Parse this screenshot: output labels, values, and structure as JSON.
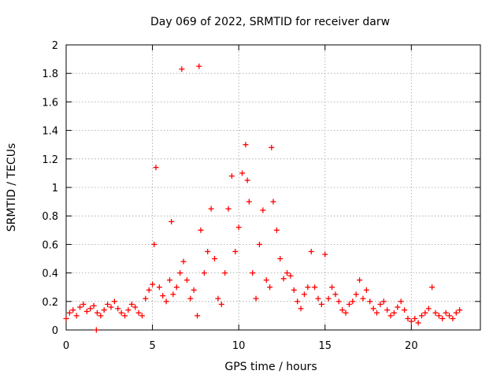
{
  "chart_data": {
    "type": "scatter",
    "title": "Day 069 of 2022, SRMTID for receiver darw",
    "xlabel": "GPS time / hours",
    "ylabel": "SRMTID / TECUs",
    "xlim": [
      0,
      24
    ],
    "ylim": [
      0,
      2
    ],
    "xticks": [
      0,
      5,
      10,
      15,
      20
    ],
    "xtick_labels": [
      "0",
      "5",
      "10",
      "15",
      "20"
    ],
    "yticks": [
      0,
      0.2,
      0.4,
      0.6,
      0.8,
      1,
      1.2,
      1.4,
      1.6,
      1.8,
      2
    ],
    "ytick_labels": [
      "0",
      "0.2",
      "0.4",
      "0.6",
      "0.8",
      "1",
      "1.2",
      "1.4",
      "1.6",
      "1.8",
      "2"
    ],
    "grid": true,
    "marker": "plus",
    "color": "#ff0000",
    "series": [
      {
        "name": "SRMTID",
        "x": [
          0.0,
          0.2,
          0.4,
          0.6,
          0.8,
          1.0,
          1.2,
          1.4,
          1.6,
          1.8,
          2.0,
          2.2,
          2.4,
          2.6,
          2.8,
          3.0,
          3.2,
          3.4,
          3.6,
          3.8,
          4.0,
          4.2,
          4.4,
          4.6,
          4.8,
          5.0,
          5.1,
          5.2,
          5.4,
          5.6,
          5.8,
          6.0,
          6.1,
          6.2,
          6.4,
          6.6,
          6.7,
          6.8,
          7.0,
          7.2,
          7.4,
          7.6,
          7.7,
          7.8,
          8.0,
          8.2,
          8.4,
          8.6,
          8.8,
          9.0,
          9.2,
          9.4,
          9.6,
          9.8,
          10.0,
          10.2,
          10.4,
          10.5,
          10.6,
          10.8,
          11.0,
          11.2,
          11.4,
          11.6,
          11.8,
          11.9,
          12.0,
          12.2,
          12.4,
          12.6,
          12.8,
          13.0,
          13.2,
          13.4,
          13.6,
          13.8,
          14.0,
          14.2,
          14.4,
          14.6,
          14.8,
          15.0,
          15.2,
          15.4,
          15.6,
          15.8,
          16.0,
          16.2,
          16.4,
          16.6,
          16.8,
          17.0,
          17.2,
          17.4,
          17.6,
          17.8,
          18.0,
          18.2,
          18.4,
          18.6,
          18.8,
          19.0,
          19.2,
          19.4,
          19.6,
          19.8,
          20.0,
          20.2,
          20.4,
          20.6,
          20.8,
          21.0,
          21.2,
          21.4,
          21.6,
          21.8,
          22.0,
          22.2,
          22.4,
          22.6,
          22.8,
          1.75
        ],
        "y": [
          0.08,
          0.12,
          0.14,
          0.1,
          0.16,
          0.18,
          0.13,
          0.15,
          0.17,
          0.12,
          0.1,
          0.14,
          0.18,
          0.16,
          0.2,
          0.15,
          0.12,
          0.1,
          0.14,
          0.18,
          0.16,
          0.12,
          0.1,
          0.22,
          0.28,
          0.32,
          0.6,
          1.14,
          0.3,
          0.24,
          0.2,
          0.35,
          0.76,
          0.25,
          0.3,
          0.4,
          1.83,
          0.48,
          0.35,
          0.22,
          0.28,
          0.1,
          1.85,
          0.7,
          0.4,
          0.55,
          0.85,
          0.5,
          0.22,
          0.18,
          0.4,
          0.85,
          1.08,
          0.55,
          0.72,
          1.1,
          1.3,
          1.05,
          0.9,
          0.4,
          0.22,
          0.6,
          0.84,
          0.35,
          0.3,
          1.28,
          0.9,
          0.7,
          0.5,
          0.36,
          0.4,
          0.38,
          0.28,
          0.2,
          0.15,
          0.25,
          0.3,
          0.55,
          0.3,
          0.22,
          0.18,
          0.53,
          0.22,
          0.3,
          0.25,
          0.2,
          0.14,
          0.12,
          0.18,
          0.2,
          0.25,
          0.35,
          0.22,
          0.28,
          0.2,
          0.15,
          0.12,
          0.18,
          0.2,
          0.14,
          0.1,
          0.12,
          0.16,
          0.2,
          0.14,
          0.08,
          0.06,
          0.08,
          0.05,
          0.1,
          0.12,
          0.15,
          0.3,
          0.12,
          0.1,
          0.08,
          0.12,
          0.1,
          0.08,
          0.12,
          0.14,
          0.0
        ]
      }
    ]
  }
}
